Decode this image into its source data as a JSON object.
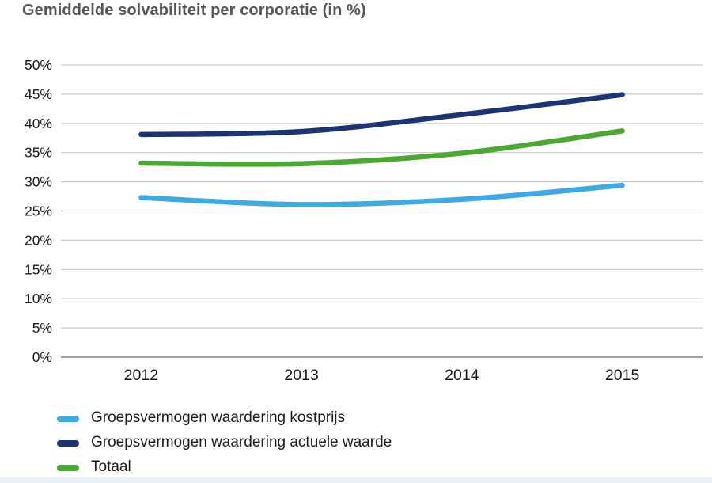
{
  "title": "Gemiddelde solvabiliteit per corporatie (in %)",
  "colors": {
    "title_text": "#54565a",
    "axis_text": "#191919",
    "gridline": "#c9c9c9",
    "axis_line": "#9b9da0",
    "background": "#ffffff",
    "bottom_strip": "#eaf1f6"
  },
  "chart_data": {
    "type": "line",
    "title": "Gemiddelde solvabiliteit per corporatie (in %)",
    "x": [
      "2012",
      "2013",
      "2014",
      "2015"
    ],
    "series": [
      {
        "name": "Groepsvermogen waardering kostprijs",
        "color": "#41a9e1",
        "values": [
          27.3,
          26.1,
          27.0,
          29.4
        ]
      },
      {
        "name": "Groepsvermogen waardering actuele waarde",
        "color": "#1d3372",
        "values": [
          38.1,
          38.6,
          41.5,
          44.9
        ]
      },
      {
        "name": "Totaal",
        "color": "#4da735",
        "values": [
          33.2,
          33.1,
          34.9,
          38.7
        ]
      }
    ],
    "ylim": [
      0,
      50
    ],
    "ytick_step": 5,
    "ytick_suffix": "%",
    "ytick_labels": [
      "0%",
      "5%",
      "10%",
      "15%",
      "20%",
      "25%",
      "30%",
      "35%",
      "40%",
      "45%",
      "50%"
    ],
    "grid": true,
    "legend_position": "bottom"
  },
  "legend": {
    "items": [
      {
        "label": "Groepsvermogen waardering kostprijs",
        "color": "#41a9e1"
      },
      {
        "label": "Groepsvermogen waardering actuele waarde",
        "color": "#1d3372"
      },
      {
        "label": "Totaal",
        "color": "#4da735"
      }
    ]
  }
}
